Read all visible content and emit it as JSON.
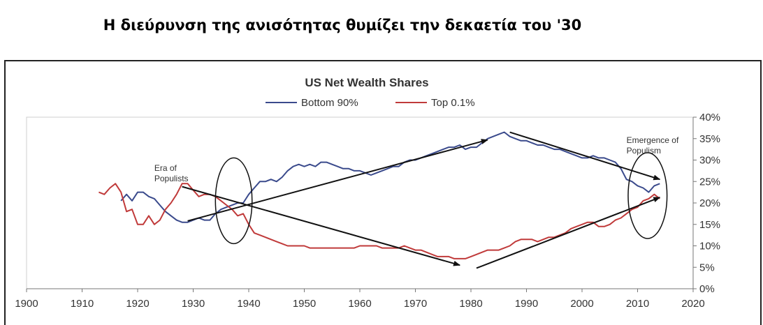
{
  "headline": "Η διεύρυνση της ανισότητας θυμίζει την δεκαετία του '30",
  "chart_data": {
    "type": "line",
    "title": "US Net Wealth Shares",
    "xlabel": "",
    "ylabel": "",
    "xlim": [
      1900,
      2020
    ],
    "ylim": [
      0,
      40
    ],
    "x_ticks": [
      "1900",
      "1910",
      "1920",
      "1930",
      "1940",
      "1950",
      "1960",
      "1970",
      "1980",
      "1990",
      "2000",
      "2010",
      "2020"
    ],
    "y_ticks": [
      "0%",
      "5%",
      "10%",
      "15%",
      "20%",
      "25%",
      "30%",
      "35%",
      "40%"
    ],
    "grid": false,
    "legend_position": "top-center",
    "series": [
      {
        "name": "Bottom 90%",
        "color": "#3a4a8c",
        "points": [
          [
            1917,
            20.5
          ],
          [
            1918,
            22.0
          ],
          [
            1919,
            20.5
          ],
          [
            1920,
            22.5
          ],
          [
            1921,
            22.5
          ],
          [
            1922,
            21.5
          ],
          [
            1923,
            21.0
          ],
          [
            1924,
            19.5
          ],
          [
            1925,
            18.0
          ],
          [
            1926,
            17.0
          ],
          [
            1927,
            16.0
          ],
          [
            1928,
            15.5
          ],
          [
            1929,
            15.5
          ],
          [
            1930,
            16.0
          ],
          [
            1931,
            16.5
          ],
          [
            1932,
            16.0
          ],
          [
            1933,
            16.0
          ],
          [
            1934,
            17.5
          ],
          [
            1935,
            18.5
          ],
          [
            1936,
            19.0
          ],
          [
            1937,
            19.5
          ],
          [
            1938,
            20.0
          ],
          [
            1939,
            20.0
          ],
          [
            1940,
            22.0
          ],
          [
            1941,
            23.5
          ],
          [
            1942,
            25.0
          ],
          [
            1943,
            25.0
          ],
          [
            1944,
            25.5
          ],
          [
            1945,
            25.0
          ],
          [
            1946,
            26.0
          ],
          [
            1947,
            27.5
          ],
          [
            1948,
            28.5
          ],
          [
            1949,
            29.0
          ],
          [
            1950,
            28.5
          ],
          [
            1951,
            29.0
          ],
          [
            1952,
            28.5
          ],
          [
            1953,
            29.5
          ],
          [
            1954,
            29.5
          ],
          [
            1955,
            29.0
          ],
          [
            1956,
            28.5
          ],
          [
            1957,
            28.0
          ],
          [
            1958,
            28.0
          ],
          [
            1959,
            27.5
          ],
          [
            1960,
            27.5
          ],
          [
            1961,
            27.0
          ],
          [
            1962,
            26.5
          ],
          [
            1963,
            27.0
          ],
          [
            1964,
            27.5
          ],
          [
            1965,
            28.0
          ],
          [
            1966,
            28.5
          ],
          [
            1967,
            28.5
          ],
          [
            1968,
            29.5
          ],
          [
            1969,
            30.0
          ],
          [
            1970,
            30.0
          ],
          [
            1971,
            30.5
          ],
          [
            1972,
            31.0
          ],
          [
            1973,
            31.5
          ],
          [
            1974,
            32.0
          ],
          [
            1975,
            32.5
          ],
          [
            1976,
            33.0
          ],
          [
            1977,
            33.0
          ],
          [
            1978,
            33.5
          ],
          [
            1979,
            32.5
          ],
          [
            1980,
            33.0
          ],
          [
            1981,
            33.0
          ],
          [
            1982,
            34.0
          ],
          [
            1983,
            35.0
          ],
          [
            1984,
            35.5
          ],
          [
            1985,
            36.0
          ],
          [
            1986,
            36.5
          ],
          [
            1987,
            35.5
          ],
          [
            1988,
            35.0
          ],
          [
            1989,
            34.5
          ],
          [
            1990,
            34.5
          ],
          [
            1991,
            34.0
          ],
          [
            1992,
            33.5
          ],
          [
            1993,
            33.5
          ],
          [
            1994,
            33.0
          ],
          [
            1995,
            32.5
          ],
          [
            1996,
            32.5
          ],
          [
            1997,
            32.0
          ],
          [
            1998,
            31.5
          ],
          [
            1999,
            31.0
          ],
          [
            2000,
            30.5
          ],
          [
            2001,
            30.5
          ],
          [
            2002,
            31.0
          ],
          [
            2003,
            30.5
          ],
          [
            2004,
            30.5
          ],
          [
            2005,
            30.0
          ],
          [
            2006,
            29.5
          ],
          [
            2007,
            28.0
          ],
          [
            2008,
            25.5
          ],
          [
            2009,
            25.0
          ],
          [
            2010,
            24.0
          ],
          [
            2011,
            23.5
          ],
          [
            2012,
            22.5
          ],
          [
            2013,
            24.0
          ],
          [
            2014,
            24.5
          ]
        ]
      },
      {
        "name": "Top 0.1%",
        "color": "#c03a3a",
        "points": [
          [
            1913,
            22.5
          ],
          [
            1914,
            22.0
          ],
          [
            1915,
            23.5
          ],
          [
            1916,
            24.5
          ],
          [
            1917,
            22.5
          ],
          [
            1918,
            18.0
          ],
          [
            1919,
            18.5
          ],
          [
            1920,
            15.0
          ],
          [
            1921,
            15.0
          ],
          [
            1922,
            17.0
          ],
          [
            1923,
            15.0
          ],
          [
            1924,
            16.0
          ],
          [
            1925,
            18.5
          ],
          [
            1926,
            20.0
          ],
          [
            1927,
            22.0
          ],
          [
            1928,
            24.5
          ],
          [
            1929,
            24.5
          ],
          [
            1930,
            23.0
          ],
          [
            1931,
            21.5
          ],
          [
            1932,
            22.0
          ],
          [
            1933,
            22.0
          ],
          [
            1934,
            21.5
          ],
          [
            1935,
            20.5
          ],
          [
            1936,
            19.5
          ],
          [
            1937,
            18.5
          ],
          [
            1938,
            17.0
          ],
          [
            1939,
            17.5
          ],
          [
            1940,
            15.0
          ],
          [
            1941,
            13.0
          ],
          [
            1942,
            12.5
          ],
          [
            1943,
            12.0
          ],
          [
            1944,
            11.5
          ],
          [
            1945,
            11.0
          ],
          [
            1946,
            10.5
          ],
          [
            1947,
            10.0
          ],
          [
            1948,
            10.0
          ],
          [
            1949,
            10.0
          ],
          [
            1950,
            10.0
          ],
          [
            1951,
            9.5
          ],
          [
            1952,
            9.5
          ],
          [
            1953,
            9.5
          ],
          [
            1954,
            9.5
          ],
          [
            1955,
            9.5
          ],
          [
            1956,
            9.5
          ],
          [
            1957,
            9.5
          ],
          [
            1958,
            9.5
          ],
          [
            1959,
            9.5
          ],
          [
            1960,
            10.0
          ],
          [
            1961,
            10.0
          ],
          [
            1962,
            10.0
          ],
          [
            1963,
            10.0
          ],
          [
            1964,
            9.5
          ],
          [
            1965,
            9.5
          ],
          [
            1966,
            9.5
          ],
          [
            1967,
            9.5
          ],
          [
            1968,
            10.0
          ],
          [
            1969,
            9.5
          ],
          [
            1970,
            9.0
          ],
          [
            1971,
            9.0
          ],
          [
            1972,
            8.5
          ],
          [
            1973,
            8.0
          ],
          [
            1974,
            7.5
          ],
          [
            1975,
            7.5
          ],
          [
            1976,
            7.5
          ],
          [
            1977,
            7.0
          ],
          [
            1978,
            7.0
          ],
          [
            1979,
            7.0
          ],
          [
            1980,
            7.5
          ],
          [
            1981,
            8.0
          ],
          [
            1982,
            8.5
          ],
          [
            1983,
            9.0
          ],
          [
            1984,
            9.0
          ],
          [
            1985,
            9.0
          ],
          [
            1986,
            9.5
          ],
          [
            1987,
            10.0
          ],
          [
            1988,
            11.0
          ],
          [
            1989,
            11.5
          ],
          [
            1990,
            11.5
          ],
          [
            1991,
            11.5
          ],
          [
            1992,
            11.0
          ],
          [
            1993,
            11.5
          ],
          [
            1994,
            12.0
          ],
          [
            1995,
            12.0
          ],
          [
            1996,
            12.5
          ],
          [
            1997,
            13.0
          ],
          [
            1998,
            14.0
          ],
          [
            1999,
            14.5
          ],
          [
            2000,
            15.0
          ],
          [
            2001,
            15.5
          ],
          [
            2002,
            15.5
          ],
          [
            2003,
            14.5
          ],
          [
            2004,
            14.5
          ],
          [
            2005,
            15.0
          ],
          [
            2006,
            16.0
          ],
          [
            2007,
            16.5
          ],
          [
            2008,
            17.5
          ],
          [
            2009,
            18.5
          ],
          [
            2010,
            19.0
          ],
          [
            2011,
            20.5
          ],
          [
            2012,
            21.0
          ],
          [
            2013,
            22.0
          ],
          [
            2014,
            21.0
          ]
        ]
      }
    ],
    "annotations": [
      {
        "lines": [
          "Era of",
          "Populists"
        ],
        "x": 1923,
        "y": 27.5
      },
      {
        "lines": [
          "Emergence of",
          "Populism"
        ],
        "x": 2008,
        "y": 34.0
      }
    ],
    "ellipses": [
      {
        "cx": 1937.3,
        "cy": 20.5,
        "rx": 3.3,
        "ry": 10.0
      },
      {
        "cx": 2011.8,
        "cy": 21.7,
        "rx": 3.5,
        "ry": 10.0
      }
    ],
    "arrows": [
      [
        [
          1929,
          15.8
        ],
        [
          1983,
          34.7
        ]
      ],
      [
        [
          1928,
          23.8
        ],
        [
          1978,
          5.5
        ]
      ],
      [
        [
          1987,
          36.5
        ],
        [
          2014,
          25.5
        ]
      ],
      [
        [
          1981,
          4.8
        ],
        [
          2014,
          21.3
        ]
      ]
    ]
  }
}
